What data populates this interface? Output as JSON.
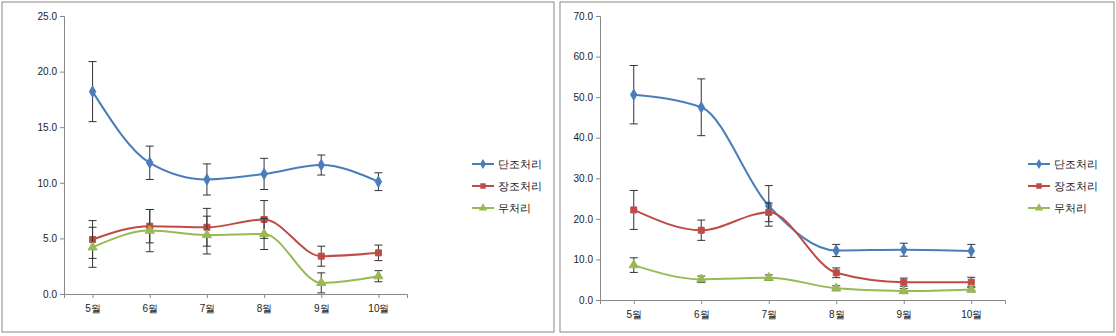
{
  "chart_data": [
    {
      "type": "line",
      "categories": [
        "5월",
        "6월",
        "7월",
        "8월",
        "9월",
        "10월"
      ],
      "ylim": [
        0,
        25
      ],
      "yticks": [
        {
          "value": 0,
          "label": "0.0"
        },
        {
          "value": 5,
          "label": "5.0"
        },
        {
          "value": 10,
          "label": "10.0"
        },
        {
          "value": 15,
          "label": "15.0"
        },
        {
          "value": 20,
          "label": "20.0"
        },
        {
          "value": 25,
          "label": "25.0"
        }
      ],
      "legend": "right",
      "series": [
        {
          "name": "단조처리",
          "color": "#4a7ebb",
          "marker": "diamond",
          "values": [
            18.2,
            11.8,
            10.3,
            10.8,
            11.6,
            10.1
          ],
          "errors": [
            2.7,
            1.5,
            1.4,
            1.4,
            0.9,
            0.8
          ]
        },
        {
          "name": "장조처리",
          "color": "#be4b48",
          "marker": "square",
          "values": [
            4.9,
            6.1,
            6.0,
            6.7,
            3.4,
            3.7
          ],
          "errors": [
            1.7,
            1.5,
            1.7,
            1.7,
            0.9,
            0.7
          ]
        },
        {
          "name": "무처리",
          "color": "#98b954",
          "marker": "triangle",
          "values": [
            4.2,
            5.7,
            5.3,
            5.4,
            1.0,
            1.6
          ],
          "errors": [
            1.8,
            1.9,
            1.7,
            1.4,
            0.9,
            0.5
          ]
        }
      ]
    },
    {
      "type": "line",
      "categories": [
        "5월",
        "6월",
        "7월",
        "8월",
        "9월",
        "10월"
      ],
      "ylim": [
        0,
        70
      ],
      "yticks": [
        {
          "value": 0,
          "label": "0.0"
        },
        {
          "value": 10,
          "label": "10.0"
        },
        {
          "value": 20,
          "label": "20.0"
        },
        {
          "value": 30,
          "label": "30.0"
        },
        {
          "value": 40,
          "label": "40.0"
        },
        {
          "value": 50,
          "label": "50.0"
        },
        {
          "value": 60,
          "label": "60.0"
        },
        {
          "value": 70,
          "label": "70.0"
        }
      ],
      "legend": "right",
      "series": [
        {
          "name": "단조처리",
          "color": "#4a7ebb",
          "marker": "diamond",
          "values": [
            50.6,
            47.5,
            23.2,
            12.2,
            12.4,
            12.1
          ],
          "errors": [
            7.2,
            7.0,
            5.0,
            1.5,
            1.6,
            1.6
          ]
        },
        {
          "name": "장조처리",
          "color": "#be4b48",
          "marker": "square",
          "values": [
            22.2,
            17.2,
            21.6,
            6.7,
            4.4,
            4.4
          ],
          "errors": [
            4.8,
            2.5,
            2.3,
            1.2,
            1.0,
            1.2
          ]
        },
        {
          "name": "무처리",
          "color": "#98b954",
          "marker": "triangle",
          "values": [
            8.6,
            5.1,
            5.5,
            2.9,
            2.2,
            2.6
          ],
          "errors": [
            1.8,
            0.8,
            0.7,
            0.6,
            0.6,
            0.6
          ]
        }
      ]
    }
  ]
}
